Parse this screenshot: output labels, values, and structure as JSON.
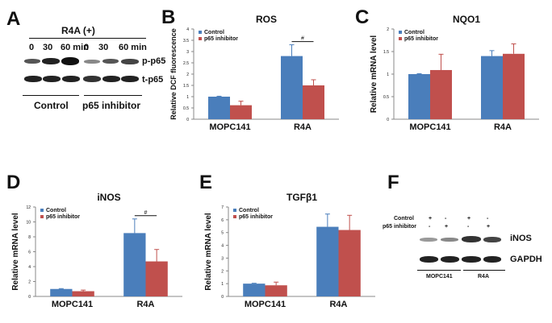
{
  "panels": {
    "A": {
      "letter": "A",
      "treatment": "R4A (+)",
      "timepoints": [
        "0",
        "30",
        "60 min",
        "0",
        "30",
        "60 min"
      ],
      "bands": [
        "p-p65",
        "t-p65"
      ],
      "groups": [
        "Control",
        "p65 inhibitor"
      ]
    },
    "F": {
      "letter": "F",
      "rows": [
        {
          "label": "Control",
          "marks": [
            "+",
            "-",
            "+",
            "-"
          ]
        },
        {
          "label": "p65 inhibitor",
          "marks": [
            "-",
            "+",
            "-",
            "+"
          ]
        }
      ],
      "bands": [
        "iNOS",
        "GAPDH"
      ],
      "groups": [
        "MOPC141",
        "R4A"
      ]
    }
  },
  "colors": {
    "control": "#4a7ebb",
    "inhibitor": "#c0504d"
  },
  "chart_data": [
    {
      "panel": "B",
      "type": "bar",
      "title": "ROS",
      "ylabel": "Relative DCF fluorescence",
      "xlabel": "",
      "categories": [
        "MOPC141",
        "R4A"
      ],
      "series": [
        {
          "name": "Control",
          "values": [
            1.0,
            2.8
          ],
          "errors": [
            0.02,
            0.5
          ]
        },
        {
          "name": "p65 inhibitor",
          "values": [
            0.62,
            1.5
          ],
          "errors": [
            0.18,
            0.25
          ]
        }
      ],
      "ylim": [
        0,
        4
      ],
      "yticks": [
        "0",
        "0.5",
        "1",
        "1.5",
        "2",
        "2.5",
        "3",
        "3.5",
        "4"
      ],
      "ytick_values": [
        0,
        0.5,
        1,
        1.5,
        2,
        2.5,
        3,
        3.5,
        4
      ],
      "significance": {
        "category": "R4A",
        "label": "#"
      },
      "legend": "top-left"
    },
    {
      "panel": "C",
      "type": "bar",
      "title": "NQO1",
      "ylabel": "Relative mRNA level",
      "xlabel": "",
      "categories": [
        "MOPC141",
        "R4A"
      ],
      "series": [
        {
          "name": "Control",
          "values": [
            1.0,
            1.4
          ],
          "errors": [
            0.01,
            0.12
          ]
        },
        {
          "name": "p65 inhibitor",
          "values": [
            1.09,
            1.45
          ],
          "errors": [
            0.35,
            0.22
          ]
        }
      ],
      "ylim": [
        0,
        2
      ],
      "yticks": [
        "0",
        "0.5",
        "1",
        "1.5",
        "2"
      ],
      "ytick_values": [
        0,
        0.5,
        1,
        1.5,
        2
      ],
      "significance": null,
      "legend": "top-left"
    },
    {
      "panel": "D",
      "type": "bar",
      "title": "iNOS",
      "ylabel": "Relative mRNA level",
      "xlabel": "",
      "categories": [
        "MOPC141",
        "R4A"
      ],
      "series": [
        {
          "name": "Control",
          "values": [
            1.0,
            8.5
          ],
          "errors": [
            0.05,
            1.9
          ]
        },
        {
          "name": "p65 inhibitor",
          "values": [
            0.7,
            4.7
          ],
          "errors": [
            0.15,
            1.6
          ]
        }
      ],
      "ylim": [
        0,
        12
      ],
      "yticks": [
        "0",
        "2",
        "4",
        "6",
        "8",
        "10",
        "12"
      ],
      "ytick_values": [
        0,
        2,
        4,
        6,
        8,
        10,
        12
      ],
      "significance": {
        "category": "R4A",
        "label": "#"
      },
      "legend": "top-left"
    },
    {
      "panel": "E",
      "type": "bar",
      "title": "TGFβ1",
      "ylabel": "Relative mRNA level",
      "xlabel": "",
      "categories": [
        "MOPC141",
        "R4A"
      ],
      "series": [
        {
          "name": "Control",
          "values": [
            1.0,
            5.45
          ],
          "errors": [
            0.03,
            1.0
          ]
        },
        {
          "name": "p65 inhibitor",
          "values": [
            0.87,
            5.2
          ],
          "errors": [
            0.25,
            1.15
          ]
        }
      ],
      "ylim": [
        0,
        7
      ],
      "yticks": [
        "0",
        "1",
        "2",
        "3",
        "4",
        "5",
        "6",
        "7"
      ],
      "ytick_values": [
        0,
        1,
        2,
        3,
        4,
        5,
        6,
        7
      ],
      "significance": null,
      "legend": "top-left"
    }
  ]
}
